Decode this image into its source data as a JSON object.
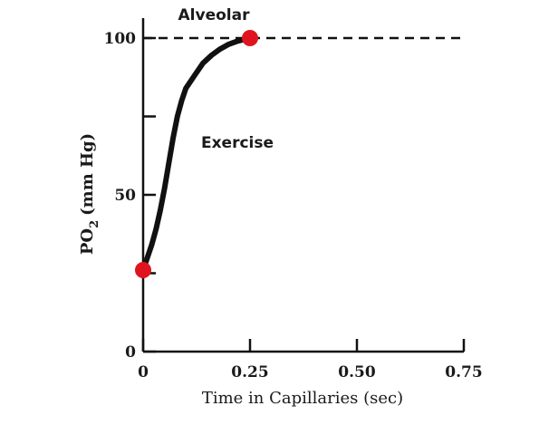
{
  "chart_data": {
    "type": "line",
    "xlabel": "Time in Capillaries (sec)",
    "ylabel_main": "PO",
    "ylabel_sub": "2",
    "ylabel_unit": "(mm Hg)",
    "xlim": [
      0,
      0.75
    ],
    "ylim": [
      0,
      100
    ],
    "x_ticks": [
      0,
      0.25,
      0.5,
      0.75
    ],
    "x_tick_labels": [
      "0",
      "0.25",
      "0.50",
      "0.75"
    ],
    "y_ticks": [
      0,
      50,
      100
    ],
    "y_tick_labels": [
      "0",
      "50",
      "100"
    ],
    "y_minor_ticks": [
      25,
      75
    ],
    "reference_line": {
      "label": "Alveolar",
      "y": 100,
      "style": "dashed"
    },
    "series": [
      {
        "name": "Exercise",
        "color": "#111111",
        "points": [
          [
            0.0,
            26
          ],
          [
            0.01,
            30
          ],
          [
            0.02,
            34
          ],
          [
            0.03,
            39
          ],
          [
            0.04,
            45
          ],
          [
            0.05,
            52
          ],
          [
            0.06,
            60
          ],
          [
            0.07,
            68
          ],
          [
            0.08,
            75
          ],
          [
            0.09,
            80
          ],
          [
            0.1,
            84
          ],
          [
            0.12,
            88
          ],
          [
            0.14,
            92
          ],
          [
            0.16,
            94.5
          ],
          [
            0.18,
            96.5
          ],
          [
            0.2,
            98
          ],
          [
            0.22,
            99
          ],
          [
            0.25,
            100
          ]
        ]
      }
    ],
    "markers": [
      {
        "x": 0,
        "y": 26,
        "color": "#e0141e"
      },
      {
        "x": 0.25,
        "y": 100,
        "color": "#e0141e"
      }
    ]
  }
}
